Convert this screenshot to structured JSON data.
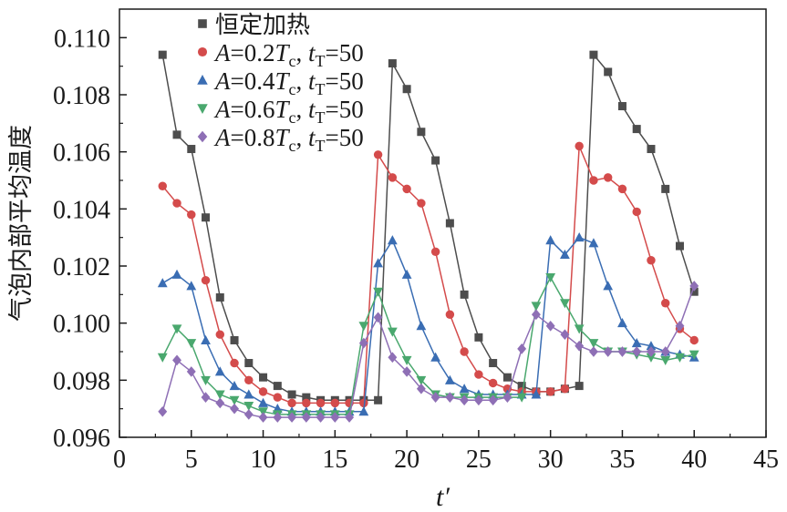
{
  "chart_data": {
    "type": "line",
    "title": "",
    "xlabel": "t′",
    "ylabel": "气泡内部平均温度",
    "xlim": [
      0,
      45
    ],
    "ylim": [
      0.096,
      0.111
    ],
    "xticks": [
      0,
      5,
      10,
      15,
      20,
      25,
      30,
      35,
      40,
      45
    ],
    "yticks": [
      0.096,
      0.098,
      0.1,
      0.102,
      0.104,
      0.106,
      0.108,
      0.11
    ],
    "xtick_labels": [
      "0",
      "5",
      "10",
      "15",
      "20",
      "25",
      "30",
      "35",
      "40",
      "45"
    ],
    "ytick_labels": [
      "0.096",
      "0.098",
      "0.100",
      "0.102",
      "0.104",
      "0.106",
      "0.108",
      "0.110"
    ],
    "grid": false,
    "legend_position": "top-left",
    "x": [
      3,
      4,
      5,
      6,
      7,
      8,
      9,
      10,
      11,
      12,
      13,
      14,
      15,
      16,
      17,
      18,
      19,
      20,
      21,
      22,
      23,
      24,
      25,
      26,
      27,
      28,
      29,
      30,
      31,
      32,
      33,
      34,
      35,
      36,
      37,
      38,
      39,
      40
    ],
    "series": [
      {
        "name": "恒定加热",
        "legend_parts": [
          [
            "恒定加热",
            ""
          ]
        ],
        "color": "#4d4d4d",
        "marker": "square",
        "values": [
          0.1094,
          0.1066,
          0.1061,
          0.1037,
          0.1009,
          0.0994,
          0.0986,
          0.0981,
          0.0978,
          0.0975,
          0.0974,
          0.0973,
          0.0973,
          0.0973,
          0.0973,
          0.0973,
          0.1091,
          0.1082,
          0.1067,
          0.1057,
          0.1035,
          0.101,
          0.0995,
          0.0986,
          0.0981,
          0.0978,
          0.0976,
          0.0976,
          0.0977,
          0.0978,
          0.1094,
          0.1088,
          0.1076,
          0.1068,
          0.1061,
          0.1047,
          0.1027,
          0.1011
        ]
      },
      {
        "name": "A=0.2Tc, tT=50",
        "legend_parts": [
          [
            "A",
            "it"
          ],
          [
            "=0.2",
            ""
          ],
          [
            "T",
            "it"
          ],
          [
            "c",
            "sub"
          ],
          [
            ", ",
            ""
          ],
          [
            "t",
            "it"
          ],
          [
            "T",
            "sub"
          ],
          [
            "=50",
            ""
          ]
        ],
        "color": "#d44b4b",
        "marker": "circle",
        "values": [
          0.1048,
          0.1042,
          0.1038,
          0.1015,
          0.0996,
          0.0986,
          0.098,
          0.0976,
          0.0974,
          0.0972,
          0.0972,
          0.0972,
          0.0972,
          0.0972,
          0.0972,
          0.1059,
          0.1051,
          0.1047,
          0.1042,
          0.1025,
          0.1003,
          0.099,
          0.0982,
          0.0979,
          0.0977,
          0.0976,
          0.0976,
          0.0976,
          0.0977,
          0.1062,
          0.105,
          0.1051,
          0.1047,
          0.1039,
          0.1022,
          0.1007,
          0.0998,
          0.0994
        ]
      },
      {
        "name": "A=0.4Tc, tT=50",
        "legend_parts": [
          [
            "A",
            "it"
          ],
          [
            "=0.4",
            ""
          ],
          [
            "T",
            "it"
          ],
          [
            "c",
            "sub"
          ],
          [
            ", ",
            ""
          ],
          [
            "t",
            "it"
          ],
          [
            "T",
            "sub"
          ],
          [
            "=50",
            ""
          ]
        ],
        "color": "#3a6db3",
        "marker": "triangle-up",
        "values": [
          0.1014,
          0.1017,
          0.1013,
          0.0994,
          0.0983,
          0.0978,
          0.0975,
          0.0972,
          0.097,
          0.0969,
          0.0969,
          0.0969,
          0.0969,
          0.0969,
          0.0969,
          0.1021,
          0.1029,
          0.1017,
          0.0999,
          0.0988,
          0.098,
          0.0977,
          0.0975,
          0.0975,
          0.0975,
          0.0975,
          0.0975,
          0.1029,
          0.1024,
          0.103,
          0.1028,
          0.1013,
          0.1,
          0.0993,
          0.0992,
          0.099,
          0.0989,
          0.0988
        ]
      },
      {
        "name": "A=0.6Tc, tT=50",
        "legend_parts": [
          [
            "A",
            "it"
          ],
          [
            "=0.6",
            ""
          ],
          [
            "T",
            "it"
          ],
          [
            "c",
            "sub"
          ],
          [
            ", ",
            ""
          ],
          [
            "t",
            "it"
          ],
          [
            "T",
            "sub"
          ],
          [
            "=50",
            ""
          ]
        ],
        "color": "#4aa86e",
        "marker": "triangle-down",
        "values": [
          0.0988,
          0.0998,
          0.0993,
          0.098,
          0.0975,
          0.0973,
          0.0971,
          0.0969,
          0.0968,
          0.0968,
          0.0968,
          0.0968,
          0.0968,
          0.0968,
          0.0999,
          0.1011,
          0.0997,
          0.0987,
          0.098,
          0.0975,
          0.0974,
          0.0974,
          0.0974,
          0.0974,
          0.0974,
          0.0974,
          0.1006,
          0.1016,
          0.1007,
          0.0998,
          0.0993,
          0.099,
          0.099,
          0.0989,
          0.0988,
          0.0987,
          0.0988,
          0.0989
        ]
      },
      {
        "name": "A=0.8Tc, tT=50",
        "legend_parts": [
          [
            "A",
            "it"
          ],
          [
            "=0.8",
            ""
          ],
          [
            "T",
            "it"
          ],
          [
            "c",
            "sub"
          ],
          [
            ", ",
            ""
          ],
          [
            "t",
            "it"
          ],
          [
            "T",
            "sub"
          ],
          [
            "=50",
            ""
          ]
        ],
        "color": "#8e6fb5",
        "marker": "diamond",
        "values": [
          0.0969,
          0.0987,
          0.0983,
          0.0974,
          0.0972,
          0.097,
          0.0968,
          0.0967,
          0.0967,
          0.0967,
          0.0967,
          0.0967,
          0.0967,
          0.0967,
          0.0993,
          0.1002,
          0.0988,
          0.0983,
          0.0977,
          0.0974,
          0.0974,
          0.0973,
          0.0973,
          0.0973,
          0.0974,
          0.0991,
          0.1003,
          0.0999,
          0.0996,
          0.0992,
          0.099,
          0.099,
          0.099,
          0.099,
          0.099,
          0.099,
          0.0999,
          0.1013
        ]
      }
    ]
  }
}
